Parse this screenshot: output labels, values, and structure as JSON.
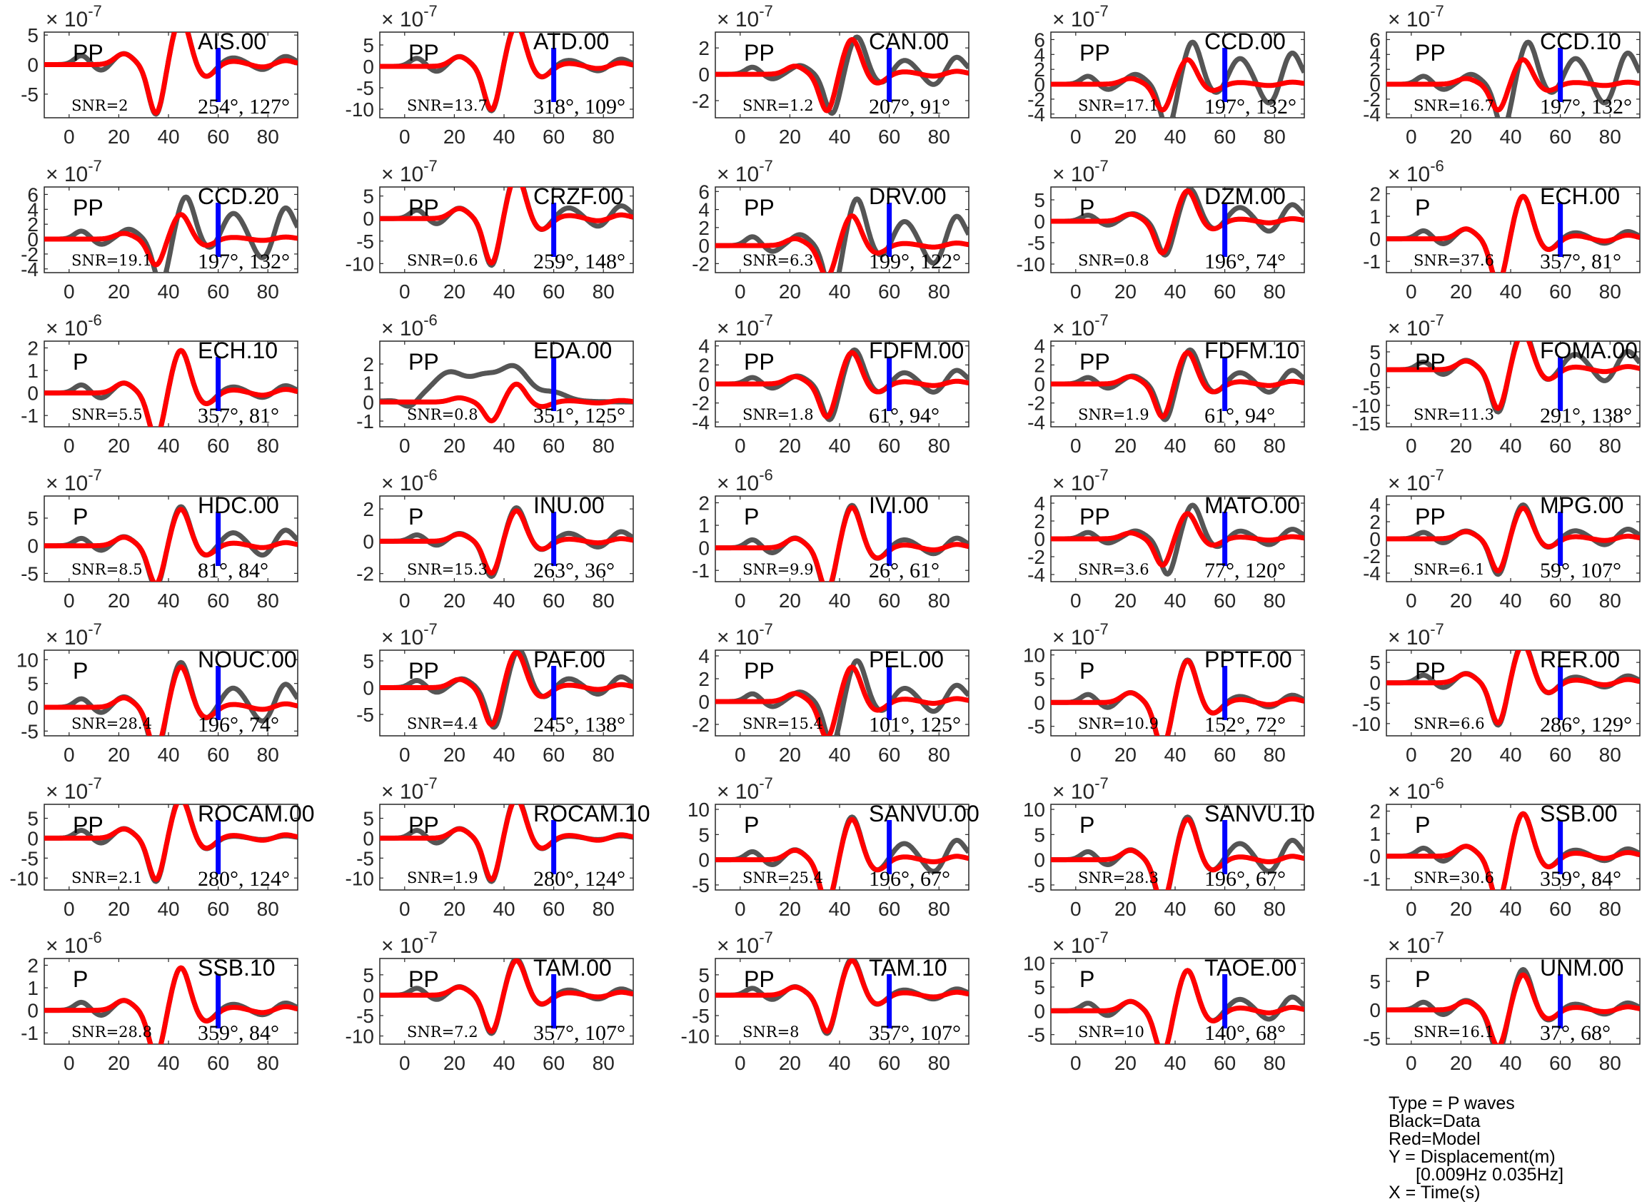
{
  "chart_data": {
    "type": "line",
    "layout": "7x5 grid of subplots",
    "x_ticks": [
      0,
      20,
      40,
      60,
      80
    ],
    "xlim": [
      -10,
      92
    ],
    "series_colors": {
      "data": "#555555",
      "model": "#ff0000",
      "marker": "#0000ff"
    },
    "marker_x": 60,
    "legend_lines": [
      "Type = P waves",
      "Black=Data",
      "Red=Model",
      "Y = Displacement(m)",
      "[0.009Hz 0.035Hz]",
      "X = Time(s)"
    ],
    "panels": [
      {
        "station": "AIS.00",
        "phase": "PP",
        "snr": "SNR=2",
        "angles": "254°, 127°",
        "exponent": "-7",
        "yticks": [
          -5,
          0,
          5
        ],
        "ylim": [
          -9,
          5.5
        ],
        "amp": 8.5,
        "model_amp": 8.3,
        "phase_shift": 0,
        "tail_growth": 1.0
      },
      {
        "station": "ATD.00",
        "phase": "PP",
        "snr": "SNR=13.7",
        "angles": "318°, 109°",
        "exponent": "-7",
        "yticks": [
          -10,
          -5,
          0,
          5
        ],
        "ylim": [
          -12,
          8
        ],
        "amp": 10.5,
        "model_amp": 10.2,
        "phase_shift": 0,
        "tail_growth": 1.0
      },
      {
        "station": "CAN.00",
        "phase": "PP",
        "snr": "SNR=1.2",
        "angles": "207°, 91°",
        "exponent": "-7",
        "yticks": [
          -2,
          0,
          2
        ],
        "ylim": [
          -3.3,
          3.2
        ],
        "amp": 3.0,
        "model_amp": 2.8,
        "phase_shift": 2,
        "tail_growth": 1.5
      },
      {
        "station": "CCD.00",
        "phase": "PP",
        "snr": "SNR=17.1",
        "angles": "197°, 132°",
        "exponent": "-7",
        "yticks": [
          -4,
          -2,
          0,
          2,
          4,
          6
        ],
        "ylim": [
          -4.5,
          7
        ],
        "amp": 6.0,
        "model_amp": 3.5,
        "phase_shift": 2,
        "tail_growth": 2.0
      },
      {
        "station": "CCD.10",
        "phase": "PP",
        "snr": "SNR=16.7",
        "angles": "197°, 132°",
        "exponent": "-7",
        "yticks": [
          -4,
          -2,
          0,
          2,
          4,
          6
        ],
        "ylim": [
          -4.5,
          7
        ],
        "amp": 6.0,
        "model_amp": 3.5,
        "phase_shift": 2,
        "tail_growth": 2.0
      },
      {
        "station": "CCD.20",
        "phase": "PP",
        "snr": "SNR=19.1",
        "angles": "197°, 132°",
        "exponent": "-7",
        "yticks": [
          -4,
          -2,
          0,
          2,
          4,
          6
        ],
        "ylim": [
          -4.5,
          7
        ],
        "amp": 6.0,
        "model_amp": 3.5,
        "phase_shift": 2,
        "tail_growth": 2.0
      },
      {
        "station": "CRZF.00",
        "phase": "PP",
        "snr": "SNR=0.6",
        "angles": "259°, 148°",
        "exponent": "-7",
        "yticks": [
          -10,
          -5,
          0,
          5
        ],
        "ylim": [
          -12,
          7
        ],
        "amp": 10.5,
        "model_amp": 10.0,
        "phase_shift": 0,
        "tail_growth": 1.2
      },
      {
        "station": "DRV.00",
        "phase": "PP",
        "snr": "SNR=6.3",
        "angles": "199°, 122°",
        "exponent": "-7",
        "yticks": [
          -2,
          0,
          2,
          4,
          6
        ],
        "ylim": [
          -3,
          6.5
        ],
        "amp": 5.5,
        "model_amp": 3.5,
        "phase_shift": 2,
        "tail_growth": 1.8
      },
      {
        "station": "DZM.00",
        "phase": "P",
        "snr": "SNR=0.8",
        "angles": "196°, 74°",
        "exponent": "-7",
        "yticks": [
          -10,
          -5,
          0,
          5
        ],
        "ylim": [
          -12,
          8
        ],
        "amp": 8.0,
        "model_amp": 7.5,
        "phase_shift": 1,
        "tail_growth": 1.6
      },
      {
        "station": "ECH.00",
        "phase": "P",
        "snr": "SNR=37.6",
        "angles": "357°, 81°",
        "exponent": "-6",
        "yticks": [
          -1,
          0,
          1,
          2
        ],
        "ylim": [
          -1.5,
          2.3
        ],
        "amp": 2.0,
        "model_amp": 2.0,
        "phase_shift": 0,
        "tail_growth": 1.0
      },
      {
        "station": "ECH.10",
        "phase": "P",
        "snr": "SNR=5.5",
        "angles": "357°, 81°",
        "exponent": "-6",
        "yticks": [
          -1,
          0,
          1,
          2
        ],
        "ylim": [
          -1.5,
          2.3
        ],
        "amp": 2.0,
        "model_amp": 2.0,
        "phase_shift": 0,
        "tail_growth": 1.0
      },
      {
        "station": "EDA.00",
        "phase": "PP",
        "snr": "SNR=0.8",
        "angles": "351°, 125°",
        "exponent": "-6",
        "yticks": [
          -1,
          0,
          1,
          2
        ],
        "ylim": [
          -1.3,
          3.2
        ],
        "amp": 1.0,
        "model_amp": 1.0,
        "phase_shift": 0,
        "tail_growth": 1.0,
        "data_offset": 1.6
      },
      {
        "station": "FDFM.00",
        "phase": "PP",
        "snr": "SNR=1.8",
        "angles": "61°, 94°",
        "exponent": "-7",
        "yticks": [
          -4,
          -2,
          0,
          2,
          4
        ],
        "ylim": [
          -4.5,
          4.5
        ],
        "amp": 3.8,
        "model_amp": 3.5,
        "phase_shift": 1,
        "tail_growth": 1.4
      },
      {
        "station": "FDFM.10",
        "phase": "PP",
        "snr": "SNR=1.9",
        "angles": "61°, 94°",
        "exponent": "-7",
        "yticks": [
          -4,
          -2,
          0,
          2,
          4
        ],
        "ylim": [
          -4.5,
          4.5
        ],
        "amp": 3.8,
        "model_amp": 3.5,
        "phase_shift": 1,
        "tail_growth": 1.4
      },
      {
        "station": "FOMA.00",
        "phase": "PP",
        "snr": "SNR=11.3",
        "angles": "291°, 138°",
        "exponent": "-7",
        "yticks": [
          -15,
          -10,
          -5,
          0,
          5
        ],
        "ylim": [
          -16,
          8
        ],
        "amp": 12.0,
        "model_amp": 11.0,
        "phase_shift": 0,
        "tail_growth": 1.5
      },
      {
        "station": "HDC.00",
        "phase": "P",
        "snr": "SNR=8.5",
        "angles": "81°, 84°",
        "exponent": "-7",
        "yticks": [
          -5,
          0,
          5
        ],
        "ylim": [
          -6.5,
          9
        ],
        "amp": 7.5,
        "model_amp": 7.0,
        "phase_shift": 0,
        "tail_growth": 1.4
      },
      {
        "station": "INU.00",
        "phase": "P",
        "snr": "SNR=15.3",
        "angles": "263°, 36°",
        "exponent": "-6",
        "yticks": [
          -2,
          0,
          2
        ],
        "ylim": [
          -2.5,
          2.8
        ],
        "amp": 2.2,
        "model_amp": 2.0,
        "phase_shift": 0,
        "tail_growth": 1.2
      },
      {
        "station": "IVI.00",
        "phase": "P",
        "snr": "SNR=9.9",
        "angles": "26°, 61°",
        "exponent": "-6",
        "yticks": [
          -1,
          0,
          1,
          2
        ],
        "ylim": [
          -1.5,
          2.3
        ],
        "amp": 2.0,
        "model_amp": 1.9,
        "phase_shift": 0,
        "tail_growth": 1.1
      },
      {
        "station": "MATO.00",
        "phase": "PP",
        "snr": "SNR=3.6",
        "angles": "77°, 120°",
        "exponent": "-7",
        "yticks": [
          -4,
          -2,
          0,
          2,
          4
        ],
        "ylim": [
          -4.8,
          4.8
        ],
        "amp": 4.0,
        "model_amp": 3.0,
        "phase_shift": 2,
        "tail_growth": 1.2
      },
      {
        "station": "MPG.00",
        "phase": "PP",
        "snr": "SNR=6.1",
        "angles": "59°, 107°",
        "exponent": "-7",
        "yticks": [
          -4,
          -2,
          0,
          2,
          4
        ],
        "ylim": [
          -5,
          5
        ],
        "amp": 4.2,
        "model_amp": 3.8,
        "phase_shift": 0,
        "tail_growth": 1.2
      },
      {
        "station": "NOUC.00",
        "phase": "P",
        "snr": "SNR=28.4",
        "angles": "196°, 74°",
        "exponent": "-7",
        "yticks": [
          -5,
          0,
          5,
          10
        ],
        "ylim": [
          -6,
          12
        ],
        "amp": 10.0,
        "model_amp": 9.0,
        "phase_shift": 0,
        "tail_growth": 1.6
      },
      {
        "station": "PAF.00",
        "phase": "PP",
        "snr": "SNR=4.4",
        "angles": "245°, 138°",
        "exponent": "-7",
        "yticks": [
          -5,
          0,
          5
        ],
        "ylim": [
          -9,
          7
        ],
        "amp": 7.5,
        "model_amp": 7.0,
        "phase_shift": 1,
        "tail_growth": 1.2
      },
      {
        "station": "PEL.00",
        "phase": "PP",
        "snr": "SNR=15.4",
        "angles": "101°, 125°",
        "exponent": "-7",
        "yticks": [
          -2,
          0,
          2,
          4
        ],
        "ylim": [
          -3,
          4.5
        ],
        "amp": 3.8,
        "model_amp": 3.2,
        "phase_shift": 2,
        "tail_growth": 1.4
      },
      {
        "station": "PPTF.00",
        "phase": "P",
        "snr": "SNR=10.9",
        "angles": "152°, 72°",
        "exponent": "-7",
        "yticks": [
          -5,
          0,
          5,
          10
        ],
        "ylim": [
          -7,
          11
        ],
        "amp": 9.5,
        "model_amp": 9.3,
        "phase_shift": 0,
        "tail_growth": 1.0
      },
      {
        "station": "RER.00",
        "phase": "PP",
        "snr": "SNR=6.6",
        "angles": "286°, 129°",
        "exponent": "-7",
        "yticks": [
          -10,
          -5,
          0,
          5
        ],
        "ylim": [
          -13,
          8
        ],
        "amp": 10.5,
        "model_amp": 10.0,
        "phase_shift": 0,
        "tail_growth": 1.0
      },
      {
        "station": "ROCAM.00",
        "phase": "PP",
        "snr": "SNR=2.1",
        "angles": "280°, 124°",
        "exponent": "-7",
        "yticks": [
          -10,
          -5,
          0,
          5
        ],
        "ylim": [
          -13,
          8.5
        ],
        "amp": 11.0,
        "model_amp": 10.5,
        "phase_shift": 0,
        "tail_growth": 0.8
      },
      {
        "station": "ROCAM.10",
        "phase": "PP",
        "snr": "SNR=1.9",
        "angles": "280°, 124°",
        "exponent": "-7",
        "yticks": [
          -10,
          -5,
          0,
          5
        ],
        "ylim": [
          -13,
          8.5
        ],
        "amp": 11.0,
        "model_amp": 10.5,
        "phase_shift": 0,
        "tail_growth": 0.8
      },
      {
        "station": "SANVU.00",
        "phase": "P",
        "snr": "SNR=25.4",
        "angles": "196°, 67°",
        "exponent": "-7",
        "yticks": [
          -5,
          0,
          5,
          10
        ],
        "ylim": [
          -6,
          11
        ],
        "amp": 9.0,
        "model_amp": 8.5,
        "phase_shift": 0,
        "tail_growth": 1.5
      },
      {
        "station": "SANVU.10",
        "phase": "P",
        "snr": "SNR=28.3",
        "angles": "196°, 67°",
        "exponent": "-7",
        "yticks": [
          -5,
          0,
          5,
          10
        ],
        "ylim": [
          -6,
          11
        ],
        "amp": 9.0,
        "model_amp": 8.5,
        "phase_shift": 0,
        "tail_growth": 1.5
      },
      {
        "station": "SSB.00",
        "phase": "P",
        "snr": "SNR=30.6",
        "angles": "359°, 84°",
        "exponent": "-6",
        "yticks": [
          -1,
          0,
          1,
          2
        ],
        "ylim": [
          -1.5,
          2.3
        ],
        "amp": 2.0,
        "model_amp": 2.0,
        "phase_shift": 0,
        "tail_growth": 1.0
      },
      {
        "station": "SSB.10",
        "phase": "P",
        "snr": "SNR=28.8",
        "angles": "359°, 84°",
        "exponent": "-6",
        "yticks": [
          -1,
          0,
          1,
          2
        ],
        "ylim": [
          -1.5,
          2.3
        ],
        "amp": 2.0,
        "model_amp": 2.0,
        "phase_shift": 0,
        "tail_growth": 1.0
      },
      {
        "station": "TAM.00",
        "phase": "PP",
        "snr": "SNR=7.2",
        "angles": "357°, 107°",
        "exponent": "-7",
        "yticks": [
          -10,
          -5,
          0,
          5
        ],
        "ylim": [
          -12,
          9
        ],
        "amp": 9.5,
        "model_amp": 9.0,
        "phase_shift": 0,
        "tail_growth": 1.0
      },
      {
        "station": "TAM.10",
        "phase": "PP",
        "snr": "SNR=8",
        "angles": "357°, 107°",
        "exponent": "-7",
        "yticks": [
          -10,
          -5,
          0,
          5
        ],
        "ylim": [
          -12,
          9
        ],
        "amp": 9.5,
        "model_amp": 9.0,
        "phase_shift": 0,
        "tail_growth": 1.0
      },
      {
        "station": "TAOE.00",
        "phase": "P",
        "snr": "SNR=10",
        "angles": "140°, 68°",
        "exponent": "-7",
        "yticks": [
          -5,
          0,
          5,
          10
        ],
        "ylim": [
          -7,
          11
        ],
        "amp": 9.0,
        "model_amp": 9.0,
        "phase_shift": 0,
        "tail_growth": 1.3
      },
      {
        "station": "UNM.00",
        "phase": "P",
        "snr": "SNR=16.1",
        "angles": "37°, 68°",
        "exponent": "-7",
        "yticks": [
          -5,
          0,
          5
        ],
        "ylim": [
          -6,
          9
        ],
        "amp": 7.5,
        "model_amp": 6.5,
        "phase_shift": 0,
        "tail_growth": 1.0
      }
    ]
  }
}
